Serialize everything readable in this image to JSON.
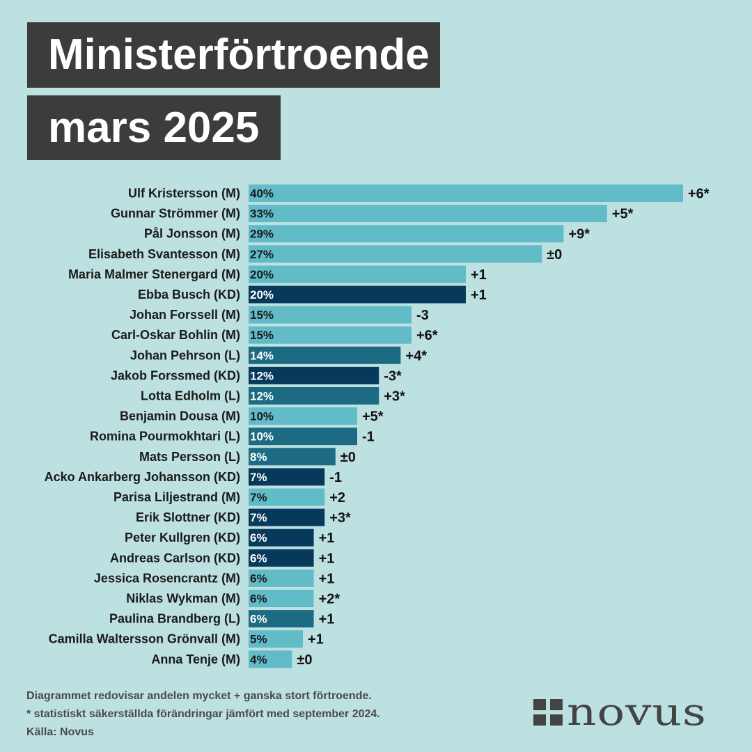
{
  "title": {
    "line1": "Ministerförtroende",
    "line2": "mars 2025"
  },
  "colors": {
    "background": "#bde0e1",
    "M": "#62bcc8",
    "L": "#1c6b82",
    "KD": "#07395a",
    "title_box": "#3c3c3c"
  },
  "chart_data": {
    "type": "bar",
    "orientation": "horizontal",
    "xlim": [
      0,
      40
    ],
    "categories": [
      "Ulf Kristersson (M)",
      "Gunnar Strömmer (M)",
      "Pål Jonsson (M)",
      "Elisabeth Svantesson (M)",
      "Maria Malmer Stenergard (M)",
      "Ebba Busch (KD)",
      "Johan Forssell (M)",
      "Carl-Oskar Bohlin (M)",
      "Johan Pehrson (L)",
      "Jakob Forssmed (KD)",
      "Lotta Edholm (L)",
      "Benjamin Dousa (M)",
      "Romina Pourmokhtari (L)",
      "Mats Persson (L)",
      "Acko Ankarberg Johansson (KD)",
      "Parisa Liljestrand (M)",
      "Erik Slottner (KD)",
      "Peter Kullgren (KD)",
      "Andreas Carlson (KD)",
      "Jessica Rosencrantz (M)",
      "Niklas Wykman (M)",
      "Paulina Brandberg (L)",
      "Camilla Waltersson Grönvall (M)",
      "Anna Tenje (M)"
    ],
    "values": [
      40,
      33,
      29,
      27,
      20,
      20,
      15,
      15,
      14,
      12,
      12,
      10,
      10,
      8,
      7,
      7,
      7,
      6,
      6,
      6,
      6,
      6,
      5,
      4
    ],
    "value_labels": [
      "40%",
      "33%",
      "29%",
      "27%",
      "20%",
      "20%",
      "15%",
      "15%",
      "14%",
      "12%",
      "12%",
      "10%",
      "10%",
      "8%",
      "7%",
      "7%",
      "7%",
      "6%",
      "6%",
      "6%",
      "6%",
      "6%",
      "5%",
      "4%"
    ],
    "changes": [
      "+6*",
      "+5*",
      "+9*",
      "±0",
      "+1",
      "+1",
      "-3",
      "+6*",
      "+4*",
      "-3*",
      "+3*",
      "+5*",
      "-1",
      "±0",
      "-1",
      "+2",
      "+3*",
      "+1",
      "+1",
      "+1",
      "+2*",
      "+1",
      "+1",
      "±0"
    ],
    "parties": [
      "M",
      "M",
      "M",
      "M",
      "M",
      "KD",
      "M",
      "M",
      "L",
      "KD",
      "L",
      "M",
      "L",
      "L",
      "KD",
      "M",
      "KD",
      "KD",
      "KD",
      "M",
      "M",
      "L",
      "M",
      "M"
    ]
  },
  "footer": {
    "line1": "Diagrammet redovisar andelen mycket + ganska stort förtroende.",
    "line2": "* statistiskt säkerställda förändringar jämfört med september 2024.",
    "line3": "Källa: Novus"
  },
  "logo": {
    "text": "novus"
  }
}
